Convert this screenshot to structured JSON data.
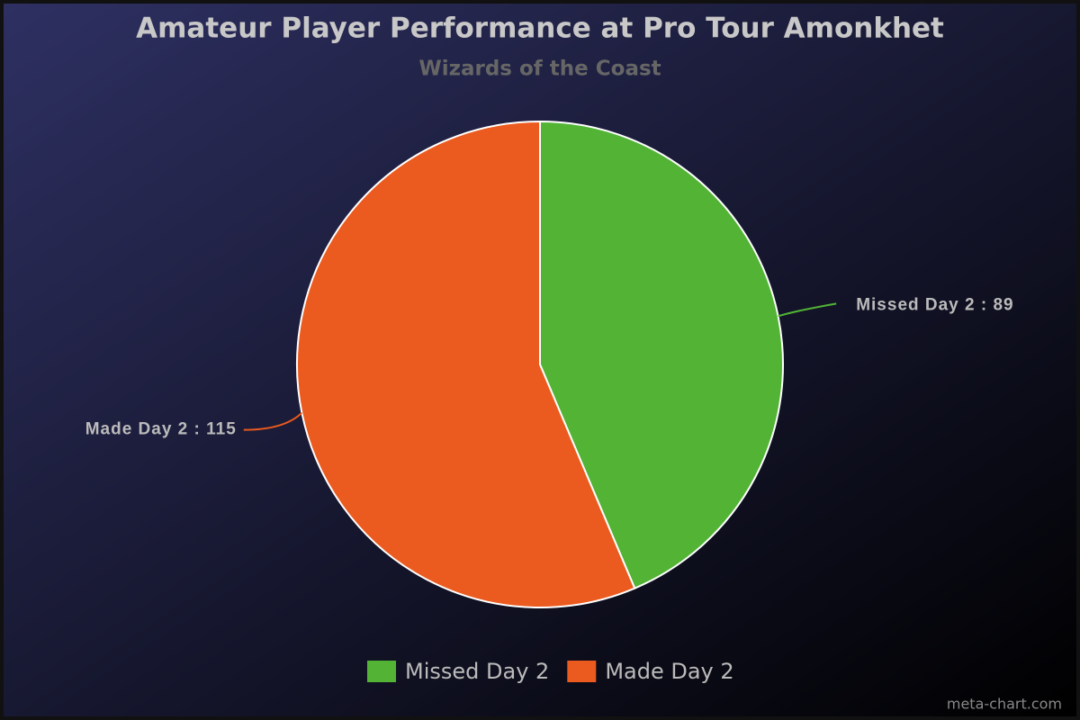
{
  "chart_data": {
    "type": "pie",
    "title": "Amateur Player Performance at Pro Tour Amonkhet",
    "subtitle": "Wizards of the Coast",
    "categories": [
      "Missed Day 2",
      "Made Day 2"
    ],
    "values": [
      89,
      115
    ],
    "value_labels": [
      "Missed Day 2 : 89",
      "Made Day 2 : 115"
    ],
    "colors": [
      "#52b335",
      "#eb5a1e"
    ],
    "legend": "bottom",
    "credit": "meta-chart.com"
  }
}
